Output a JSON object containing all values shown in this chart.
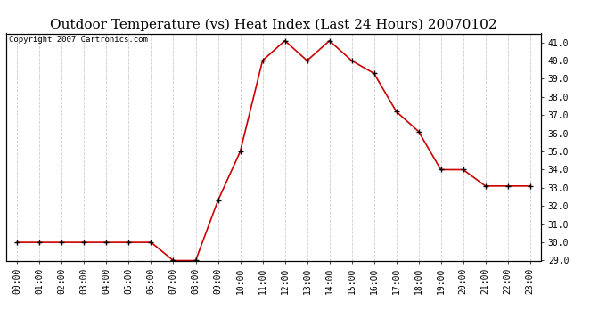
{
  "title": "Outdoor Temperature (vs) Heat Index (Last 24 Hours) 20070102",
  "copyright_text": "Copyright 2007 Cartronics.com",
  "x_labels": [
    "00:00",
    "01:00",
    "02:00",
    "03:00",
    "04:00",
    "05:00",
    "06:00",
    "07:00",
    "08:00",
    "09:00",
    "10:00",
    "11:00",
    "12:00",
    "13:00",
    "14:00",
    "15:00",
    "16:00",
    "17:00",
    "18:00",
    "19:00",
    "20:00",
    "21:00",
    "22:00",
    "23:00"
  ],
  "y_values": [
    30.0,
    30.0,
    30.0,
    30.0,
    30.0,
    30.0,
    30.0,
    29.0,
    29.0,
    32.3,
    35.0,
    40.0,
    41.1,
    40.0,
    41.1,
    40.0,
    39.3,
    37.2,
    36.1,
    34.0,
    34.0,
    33.1,
    33.1,
    33.1
  ],
  "line_color": "#cc0000",
  "marker": "+",
  "marker_color": "#000000",
  "bg_color": "#ffffff",
  "grid_color": "#cccccc",
  "ylim_min": 29.0,
  "ylim_max": 41.5,
  "ytick_min": 29.0,
  "ytick_max": 41.0,
  "ytick_step": 1.0,
  "title_fontsize": 11,
  "axis_fontsize": 7,
  "copyright_fontsize": 6.5
}
